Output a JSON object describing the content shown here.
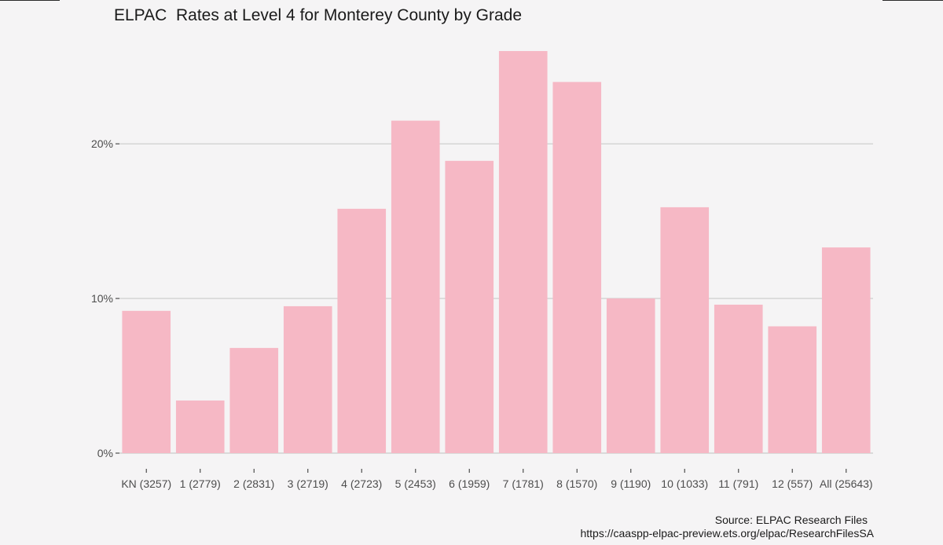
{
  "chart_data": {
    "type": "bar",
    "title": "ELPAC  Rates at Level 4 for Monterey County by Grade",
    "xlabel": "",
    "ylabel": "",
    "categories": [
      "KN (3257)",
      "1 (2779)",
      "2 (2831)",
      "3 (2719)",
      "4 (2723)",
      "5 (2453)",
      "6 (1959)",
      "7 (1781)",
      "8 (1570)",
      "9 (1190)",
      "10 (1033)",
      "11 (791)",
      "12 (557)",
      "All (25643)"
    ],
    "values": [
      9.2,
      3.4,
      6.8,
      9.5,
      15.8,
      21.5,
      18.9,
      26.0,
      24.0,
      10.0,
      15.9,
      9.6,
      8.2,
      13.3
    ],
    "value_unit": "%",
    "ylim": [
      0,
      26.0
    ],
    "yticks": [
      0,
      10,
      20
    ],
    "ytick_labels": [
      "0%",
      "10%",
      "20%"
    ],
    "grid": true,
    "bar_color": "#f6b8c5",
    "source": "Source: ELPAC Research Files",
    "source_url": "https://caaspp-elpac-preview.ets.org/elpac/ResearchFilesSA"
  }
}
